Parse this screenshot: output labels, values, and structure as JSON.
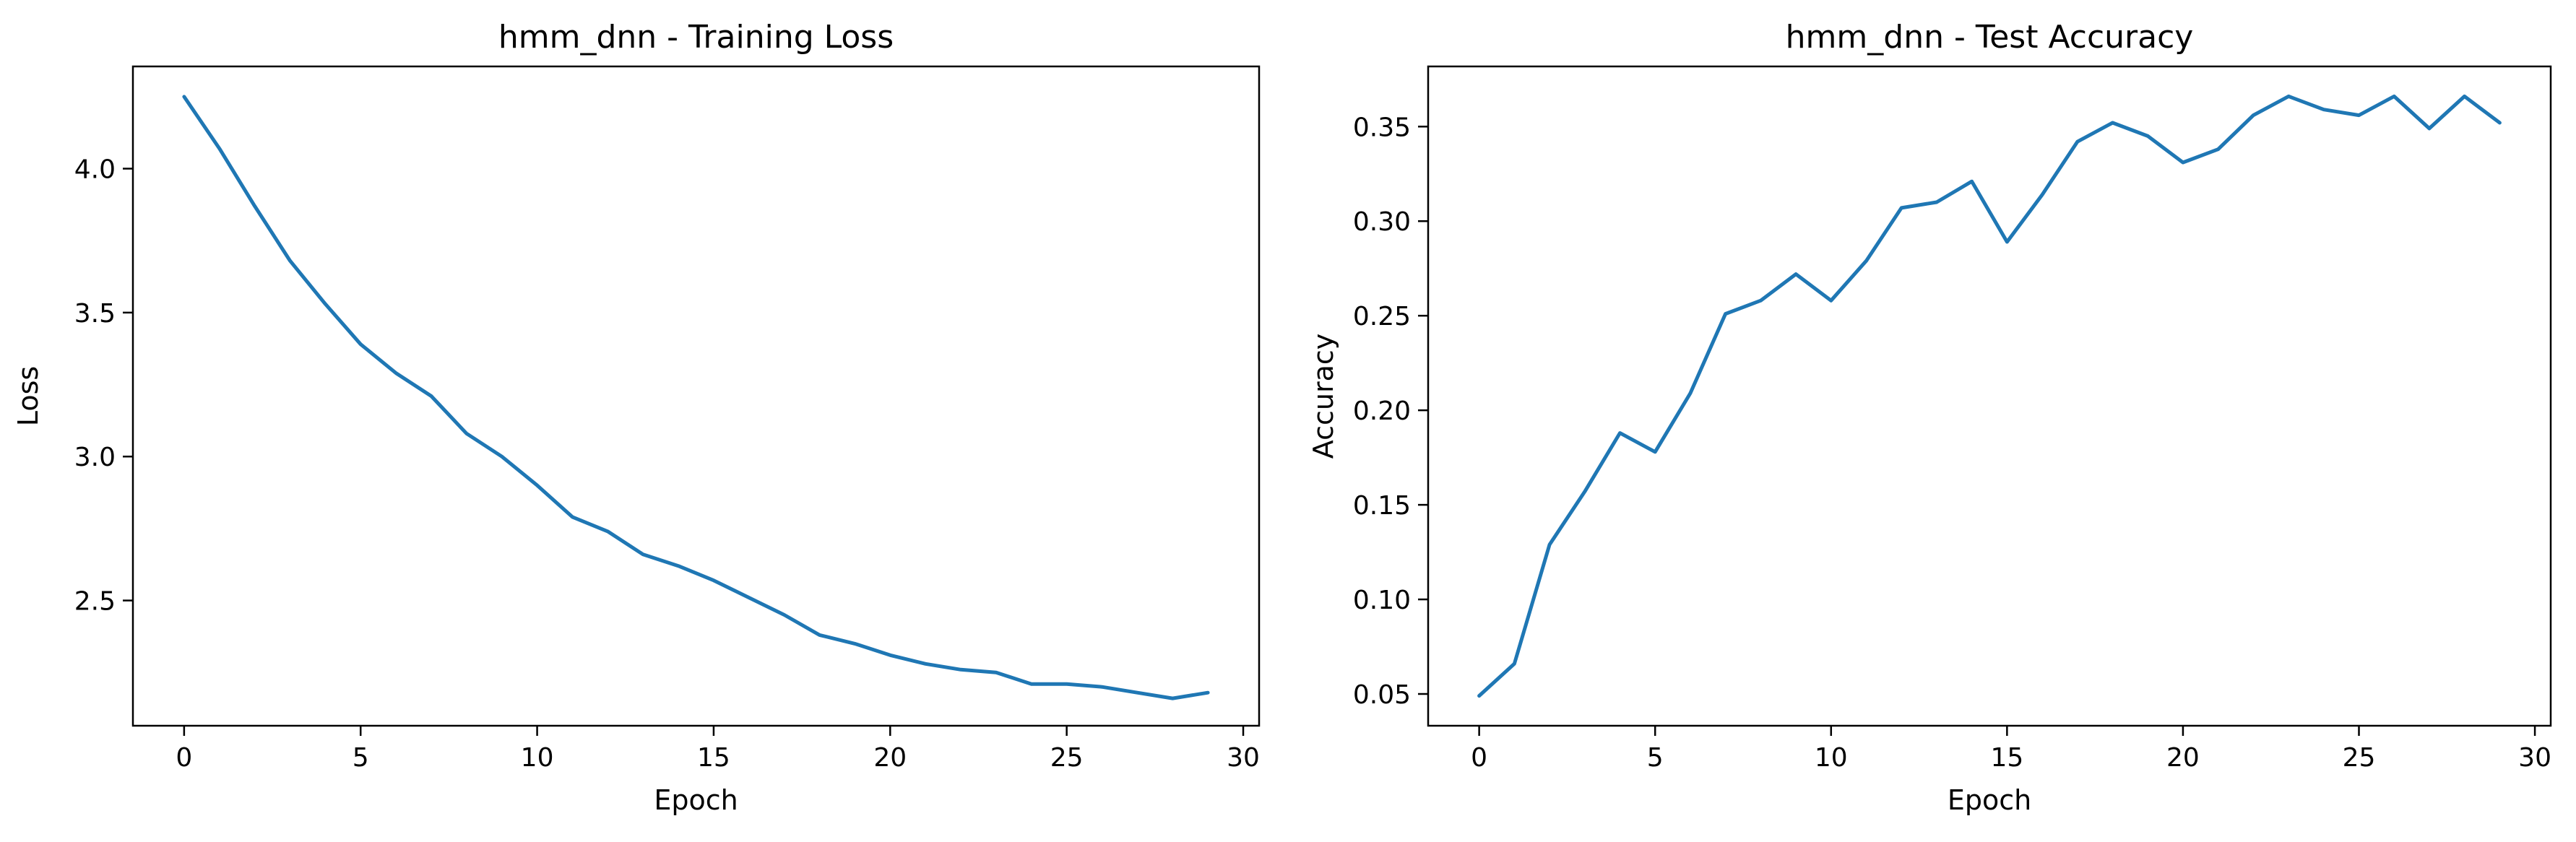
{
  "chart_data": [
    {
      "type": "line",
      "title": "hmm_dnn - Training Loss",
      "xlabel": "Epoch",
      "ylabel": "Loss",
      "xlim": [
        -1.45,
        30.45
      ],
      "ylim": [
        2.065,
        4.355
      ],
      "xticks": [
        0,
        5,
        10,
        15,
        20,
        25,
        30
      ],
      "xtick_labels": [
        "0",
        "5",
        "10",
        "15",
        "20",
        "25",
        "30"
      ],
      "yticks": [
        2.5,
        3.0,
        3.5,
        4.0
      ],
      "ytick_labels": [
        "2.5",
        "3.0",
        "3.5",
        "4.0"
      ],
      "grid": false,
      "color": "#1f77b4",
      "x": [
        0,
        1,
        2,
        3,
        4,
        5,
        6,
        7,
        8,
        9,
        10,
        11,
        12,
        13,
        14,
        15,
        16,
        17,
        18,
        19,
        20,
        21,
        22,
        23,
        24,
        25,
        26,
        27,
        28,
        29
      ],
      "series": [
        {
          "values": [
            4.25,
            4.07,
            3.87,
            3.68,
            3.53,
            3.39,
            3.29,
            3.21,
            3.08,
            3.0,
            2.9,
            2.79,
            2.74,
            2.66,
            2.62,
            2.57,
            2.51,
            2.45,
            2.38,
            2.35,
            2.31,
            2.28,
            2.26,
            2.25,
            2.21,
            2.21,
            2.2,
            2.18,
            2.16,
            2.18
          ]
        }
      ]
    },
    {
      "type": "line",
      "title": "hmm_dnn - Test Accuracy",
      "xlabel": "Epoch",
      "ylabel": "Accuracy",
      "xlim": [
        -1.45,
        30.45
      ],
      "ylim": [
        0.0332,
        0.3818
      ],
      "xticks": [
        0,
        5,
        10,
        15,
        20,
        25,
        30
      ],
      "xtick_labels": [
        "0",
        "5",
        "10",
        "15",
        "20",
        "25",
        "30"
      ],
      "yticks": [
        0.05,
        0.1,
        0.15,
        0.2,
        0.25,
        0.3,
        0.35
      ],
      "ytick_labels": [
        "0.05",
        "0.10",
        "0.15",
        "0.20",
        "0.25",
        "0.30",
        "0.35"
      ],
      "grid": false,
      "color": "#1f77b4",
      "x": [
        0,
        1,
        2,
        3,
        4,
        5,
        6,
        7,
        8,
        9,
        10,
        11,
        12,
        13,
        14,
        15,
        16,
        17,
        18,
        19,
        20,
        21,
        22,
        23,
        24,
        25,
        26,
        27,
        28,
        29
      ],
      "series": [
        {
          "values": [
            0.049,
            0.066,
            0.129,
            0.157,
            0.188,
            0.178,
            0.209,
            0.251,
            0.258,
            0.272,
            0.258,
            0.279,
            0.307,
            0.31,
            0.321,
            0.289,
            0.314,
            0.342,
            0.352,
            0.345,
            0.331,
            0.338,
            0.356,
            0.366,
            0.359,
            0.356,
            0.366,
            0.349,
            0.366,
            0.352
          ]
        }
      ]
    }
  ]
}
